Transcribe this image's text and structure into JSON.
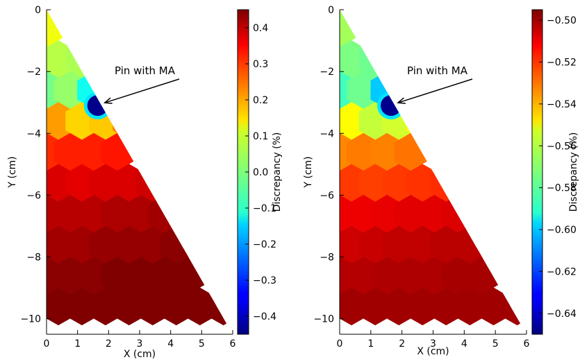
{
  "chart_data": [
    {
      "type": "heatmap",
      "subtype": "hexagonal pin-cell map over a triangular fuel-assembly section",
      "xlabel": "X (cm)",
      "ylabel": "Y (cm)",
      "colorbar_label": "Discrepancy (%)",
      "xlim": [
        0,
        6
      ],
      "ylim": [
        -10.5,
        0
      ],
      "x_ticks": [
        0,
        1,
        2,
        3,
        4,
        5,
        6
      ],
      "y_ticks": [
        0,
        -2,
        -4,
        -6,
        -8,
        -10
      ],
      "x_tick_labels": [
        "0",
        "1",
        "2",
        "3",
        "4",
        "5",
        "6"
      ],
      "y_tick_labels": [
        "0",
        "−2",
        "−4",
        "−6",
        "−8",
        "−10"
      ],
      "colorbar_range": [
        -0.45,
        0.45
      ],
      "colorbar_ticks": [
        0.4,
        0.3,
        0.2,
        0.1,
        0.0,
        -0.1,
        -0.2,
        -0.3,
        -0.4
      ],
      "colorbar_tick_labels": [
        "0.4",
        "0.3",
        "0.2",
        "0.1",
        "0.0",
        "−0.1",
        "−0.2",
        "−0.3",
        "−0.4"
      ],
      "colormap": "jet",
      "annotation": {
        "text": "Pin with MA",
        "target": [
          1.65,
          -3.1
        ]
      },
      "ma_pin": {
        "x": 1.65,
        "y": -3.1,
        "value": -0.44
      },
      "pin_rows": [
        {
          "y": -0.6,
          "values": [
            0.1
          ]
        },
        {
          "y": -1.6,
          "values": [
            0.05,
            0.04
          ]
        },
        {
          "y": -2.6,
          "values": [
            -0.01,
            0.02,
            -0.1
          ]
        },
        {
          "y": -3.6,
          "values": [
            0.2,
            0.15,
            0.16,
            0.22
          ]
        },
        {
          "y": -4.6,
          "values": [
            0.3,
            0.31,
            0.31,
            0.32
          ]
        },
        {
          "y": -5.6,
          "values": [
            0.37,
            0.36,
            0.37,
            0.37,
            0.38
          ]
        },
        {
          "y": -6.6,
          "values": [
            0.4,
            0.4,
            0.4,
            0.41,
            0.41,
            0.42
          ]
        },
        {
          "y": -7.6,
          "values": [
            0.42,
            0.42,
            0.43,
            0.43,
            0.43,
            0.44,
            0.44
          ]
        },
        {
          "y": -8.6,
          "values": [
            0.44,
            0.44,
            0.44,
            0.45,
            0.45,
            0.45,
            0.45
          ]
        },
        {
          "y": -9.6,
          "values": [
            0.45,
            0.45,
            0.45,
            0.45,
            0.45,
            0.45,
            0.45,
            0.45
          ]
        }
      ]
    },
    {
      "type": "heatmap",
      "subtype": "hexagonal pin-cell map over a triangular fuel-assembly section",
      "xlabel": "X (cm)",
      "ylabel": "Y (cm)",
      "colorbar_label": "Discrepancy (%)",
      "xlim": [
        0,
        6
      ],
      "ylim": [
        -10.5,
        0
      ],
      "x_ticks": [
        0,
        1,
        2,
        3,
        4,
        5,
        6
      ],
      "y_ticks": [
        0,
        -2,
        -4,
        -6,
        -8,
        -10
      ],
      "x_tick_labels": [
        "0",
        "1",
        "2",
        "3",
        "4",
        "5",
        "6"
      ],
      "y_tick_labels": [
        "0",
        "−2",
        "−4",
        "−6",
        "−8",
        "−10"
      ],
      "colorbar_range": [
        -0.65,
        -0.495
      ],
      "colorbar_ticks": [
        -0.5,
        -0.52,
        -0.54,
        -0.56,
        -0.58,
        -0.6,
        -0.62,
        -0.64
      ],
      "colorbar_tick_labels": [
        "−0.50",
        "−0.52",
        "−0.54",
        "−0.56",
        "−0.58",
        "−0.60",
        "−0.62",
        "−0.64"
      ],
      "colormap": "jet",
      "annotation": {
        "text": "Pin with MA",
        "target": [
          1.65,
          -3.1
        ]
      },
      "ma_pin": {
        "x": 1.65,
        "y": -3.1,
        "value": -0.648
      },
      "pin_rows": [
        {
          "y": -0.6,
          "values": [
            -0.567
          ]
        },
        {
          "y": -1.6,
          "values": [
            -0.573,
            -0.575
          ]
        },
        {
          "y": -2.6,
          "values": [
            -0.582,
            -0.575,
            -0.6
          ]
        },
        {
          "y": -3.6,
          "values": [
            -0.553,
            -0.562,
            -0.56,
            -0.552
          ]
        },
        {
          "y": -4.6,
          "values": [
            -0.535,
            -0.533,
            -0.534,
            -0.532
          ]
        },
        {
          "y": -5.6,
          "values": [
            -0.523,
            -0.524,
            -0.523,
            -0.522,
            -0.521
          ]
        },
        {
          "y": -6.6,
          "values": [
            -0.512,
            -0.512,
            -0.511,
            -0.51,
            -0.51,
            -0.509
          ]
        },
        {
          "y": -7.6,
          "values": [
            -0.507,
            -0.506,
            -0.505,
            -0.505,
            -0.504,
            -0.504,
            -0.504
          ]
        },
        {
          "y": -8.6,
          "values": [
            -0.503,
            -0.503,
            -0.502,
            -0.502,
            -0.502,
            -0.501,
            -0.501
          ]
        },
        {
          "y": -9.6,
          "values": [
            -0.5,
            -0.5,
            -0.5,
            -0.5,
            -0.5,
            -0.5,
            -0.5,
            -0.5
          ]
        }
      ]
    }
  ]
}
